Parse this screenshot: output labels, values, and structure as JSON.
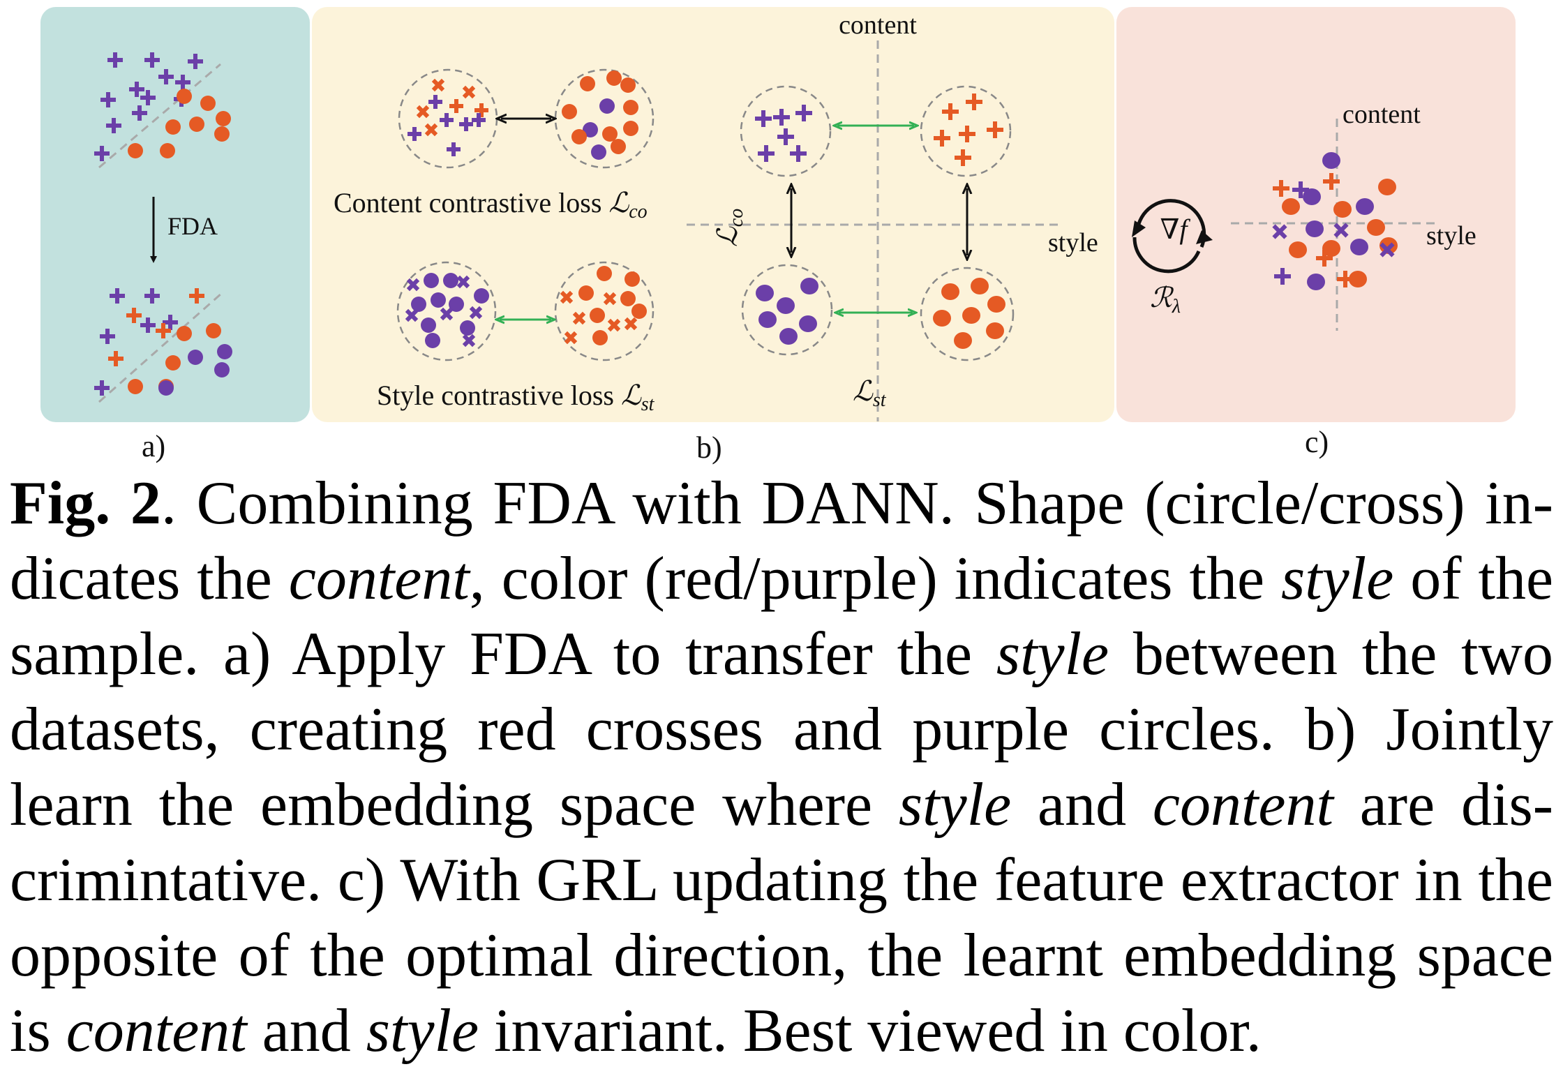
{
  "colors": {
    "purple": "#6b3fa8",
    "red": "#e55a24",
    "panel_a_bg": "#c2e1de",
    "panel_b_bg": "#fcf3da",
    "panel_c_bg": "#f9e2da",
    "dashed": "#a9a9a9",
    "green_arrow": "#33b055"
  },
  "panel_a": {
    "arrow_label": "FDA",
    "sublabel": "a)"
  },
  "panel_b": {
    "content_loss_label": "Content contrastive  loss ",
    "content_loss_symbol": "ℒ",
    "content_loss_subscript": "co",
    "style_loss_label": "Style contrastive  loss ",
    "style_loss_symbol": "ℒ",
    "style_loss_subscript": "st",
    "axis_content": "content",
    "axis_style": "style",
    "vertical_loss_symbol": "ℒ",
    "vertical_loss_subscript": "co",
    "horizontal_loss_symbol": "ℒ",
    "horizontal_loss_subscript": "st",
    "sublabel": "b)"
  },
  "panel_c": {
    "grad_symbol": "∇f",
    "reg_symbol": "ℛ",
    "reg_subscript": "λ",
    "axis_content": "content",
    "axis_style": "style",
    "sublabel": "c)"
  },
  "caption": {
    "fig_label": "Fig. 2",
    "s1": ". Combining FDA with DANN. Shape (circle/cross) in-dicates the ",
    "i1": "content",
    "s2": ", color (red/purple) indicates the ",
    "i2": "style",
    "s3": " of the sample.  a) Apply FDA to transfer the ",
    "i3": "style",
    "s4": " between the two datasets, creating red crosses and purple circles.  b) Jointly learn the embedding space where ",
    "i4": "style",
    "s5": " and ",
    "i5": "content",
    "s6": " are dis-crimintative.  c) With GRL updating the feature extractor in the opposite of the optimal direction, the learnt embedding space is ",
    "i6": "content",
    "s7": " and ",
    "i7": "style",
    "s8": " invariant. Best viewed in color."
  }
}
